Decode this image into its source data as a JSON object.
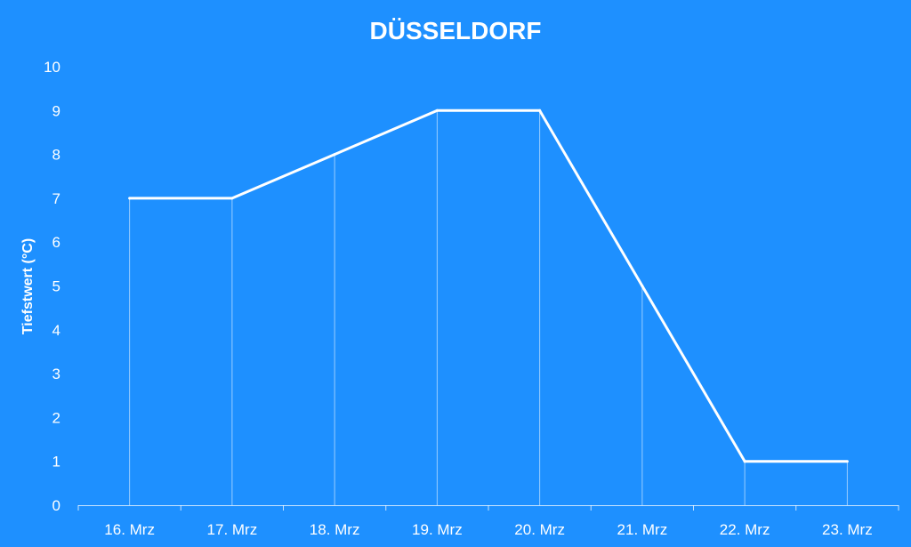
{
  "chart_data": {
    "type": "line",
    "title": "DÜSSELDORF",
    "xlabel": "",
    "ylabel": "Tiefstwert (°C)",
    "categories": [
      "16. Mrz",
      "17. Mrz",
      "18. Mrz",
      "19. Mrz",
      "20. Mrz",
      "21. Mrz",
      "22. Mrz",
      "23. Mrz"
    ],
    "series": [
      {
        "values": [
          7,
          7,
          8,
          9,
          9,
          5,
          1,
          1
        ]
      }
    ],
    "ylim": [
      0,
      10
    ],
    "yticks": [
      "0",
      "1",
      "2",
      "3",
      "4",
      "5",
      "6",
      "7",
      "8",
      "9",
      "10"
    ],
    "grid": false,
    "drop_lines": true,
    "colors": {
      "background": "#1e90ff",
      "line": "#ffffff",
      "text": "#ffffff"
    }
  }
}
